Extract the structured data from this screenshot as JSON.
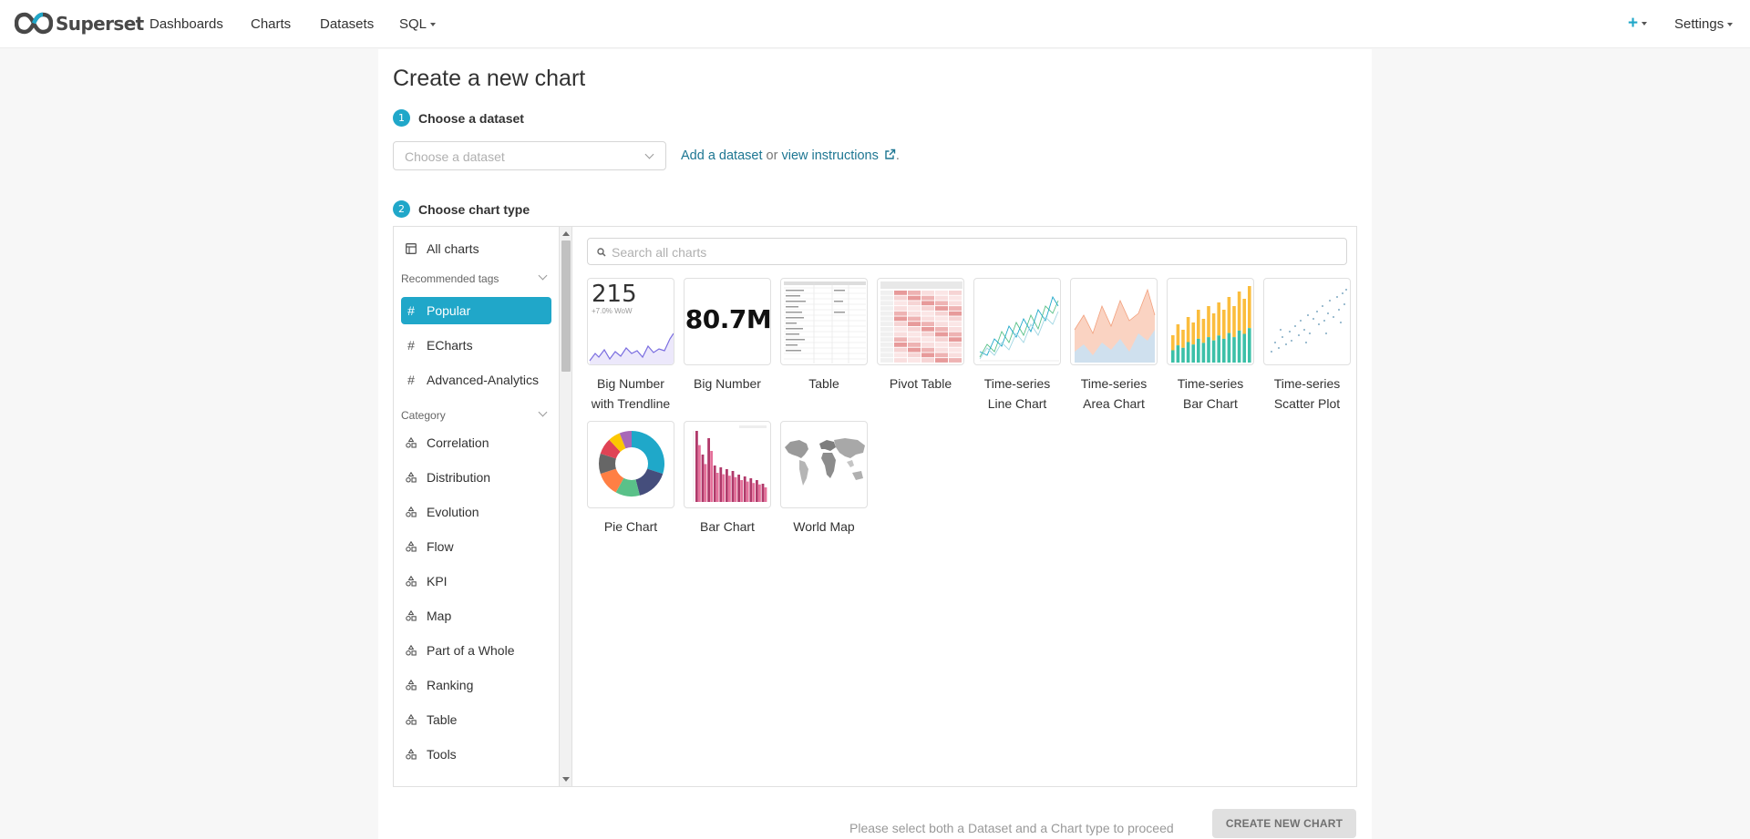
{
  "navbar": {
    "brand": "Superset",
    "items": [
      "Dashboards",
      "Charts",
      "Datasets",
      "SQL"
    ],
    "settings_label": "Settings",
    "plus_icon": "plus-icon",
    "accent": "#20a7c9"
  },
  "page": {
    "title": "Create a new chart",
    "step1": {
      "num": "1",
      "label": "Choose a dataset"
    },
    "step2": {
      "num": "2",
      "label": "Choose chart type"
    },
    "dataset_placeholder": "Choose a dataset",
    "add_dataset": "Add a dataset",
    "or": "or",
    "view_instructions": "view instructions",
    "period": "."
  },
  "sidebar": {
    "all_charts": "All charts",
    "recommended_tags_header": "Recommended tags",
    "tags": [
      "Popular",
      "ECharts",
      "Advanced-Analytics"
    ],
    "active_tag": "Popular",
    "category_header": "Category",
    "categories": [
      "Correlation",
      "Distribution",
      "Evolution",
      "Flow",
      "KPI",
      "Map",
      "Part of a Whole",
      "Ranking",
      "Table",
      "Tools"
    ]
  },
  "search": {
    "placeholder": "Search all charts"
  },
  "tiles": {
    "bn_trend": {
      "label1": "Big Number",
      "label2": "with Trendline",
      "value": "215",
      "sub": "+7.0% WoW"
    },
    "bn": {
      "label": "Big Number",
      "value": "80.7M"
    },
    "table": {
      "label": "Table"
    },
    "pivot": {
      "label": "Pivot Table"
    },
    "ts_line": {
      "label1": "Time-series",
      "label2": "Line Chart"
    },
    "ts_area": {
      "label1": "Time-series",
      "label2": "Area Chart"
    },
    "ts_bar": {
      "label1": "Time-series",
      "label2": "Bar Chart"
    },
    "ts_scatter": {
      "label1": "Time-series",
      "label2": "Scatter Plot"
    },
    "pie": {
      "label": "Pie Chart"
    },
    "bar": {
      "label": "Bar Chart"
    },
    "world": {
      "label": "World Map"
    }
  },
  "footer": {
    "message": "Please select both a Dataset and a Chart type to proceed",
    "create_button": "CREATE NEW CHART"
  }
}
